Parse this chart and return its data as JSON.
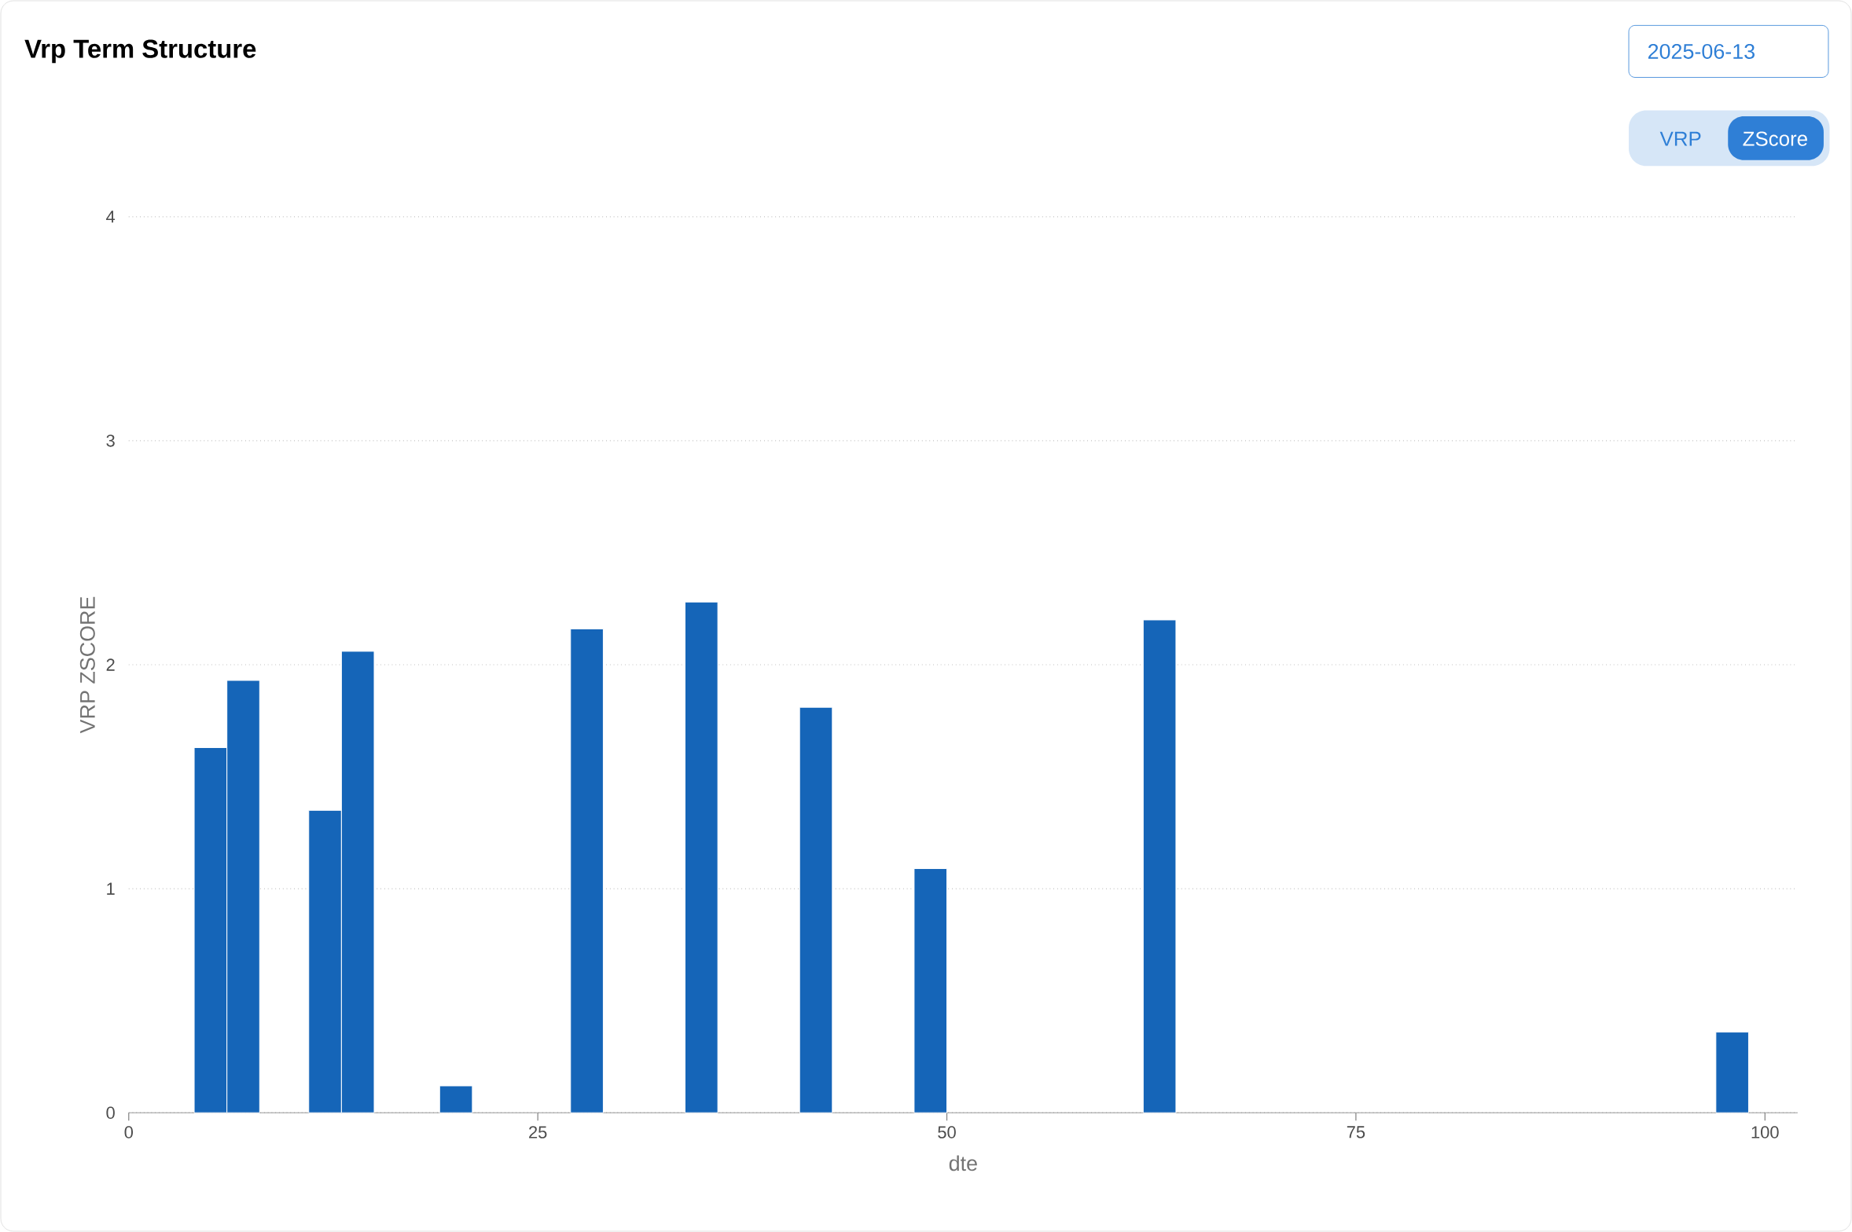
{
  "chart_data": {
    "type": "bar",
    "title": "Vrp Term Structure",
    "subtitle": "2025-06-13",
    "xlabel": "dte",
    "ylabel": "VRP ZSCORE",
    "annotations": [
      "VRP",
      "ZScore"
    ],
    "x": [
      5,
      7,
      12,
      14,
      20,
      28,
      35,
      42,
      49,
      63,
      98
    ],
    "values": [
      1.63,
      1.93,
      1.35,
      2.06,
      0.12,
      2.16,
      2.28,
      1.81,
      1.09,
      2.2,
      0.36
    ],
    "color": "#1565b8",
    "xlim": [
      0,
      102
    ],
    "xticks": [
      0,
      25,
      50,
      75,
      100
    ],
    "ylim": [
      0,
      4
    ],
    "yticks": [
      0,
      1,
      2,
      3,
      4
    ],
    "grid": "y"
  }
}
